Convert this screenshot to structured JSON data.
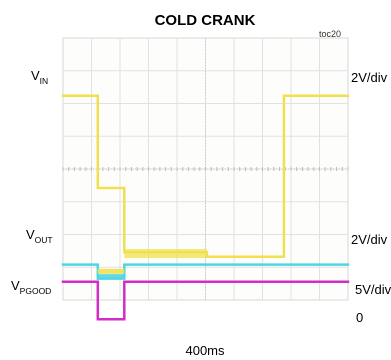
{
  "chart_data": {
    "type": "line",
    "title": "COLD CRANK",
    "figure_id": "toc20",
    "xlabel": "400ms",
    "x_divisions": 10,
    "y_divisions": 8,
    "grid": true,
    "series": [
      {
        "name": "V",
        "subscript": "IN",
        "scale": "2V/div",
        "color": "#f0e050",
        "points": [
          [
            0,
            6.15
          ],
          [
            1.22,
            6.15
          ],
          [
            1.22,
            3.2
          ],
          [
            2.15,
            3.2
          ],
          [
            2.15,
            1.15
          ],
          [
            5.05,
            1.15
          ],
          [
            5.05,
            1.0
          ],
          [
            7.75,
            1.0
          ],
          [
            7.75,
            6.15
          ],
          [
            10,
            6.15
          ]
        ]
      },
      {
        "name": "V",
        "subscript": "OUT",
        "scale": "2V/div",
        "color": "#4fd6e2",
        "points": [
          [
            0,
            0.75
          ],
          [
            1.22,
            0.75
          ],
          [
            1.22,
            0.3
          ],
          [
            2.15,
            0.3
          ],
          [
            2.15,
            0.75
          ],
          [
            10,
            0.75
          ]
        ]
      },
      {
        "name": "V",
        "subscript": "PGOOD",
        "scale": "5V/div",
        "color": "#d02ec6",
        "points": [
          [
            0,
            0.2
          ],
          [
            1.22,
            0.2
          ],
          [
            1.22,
            -1.0
          ],
          [
            2.15,
            -1.0
          ],
          [
            2.15,
            0.2
          ],
          [
            10,
            0.2
          ]
        ]
      }
    ],
    "zero_label": "0"
  }
}
